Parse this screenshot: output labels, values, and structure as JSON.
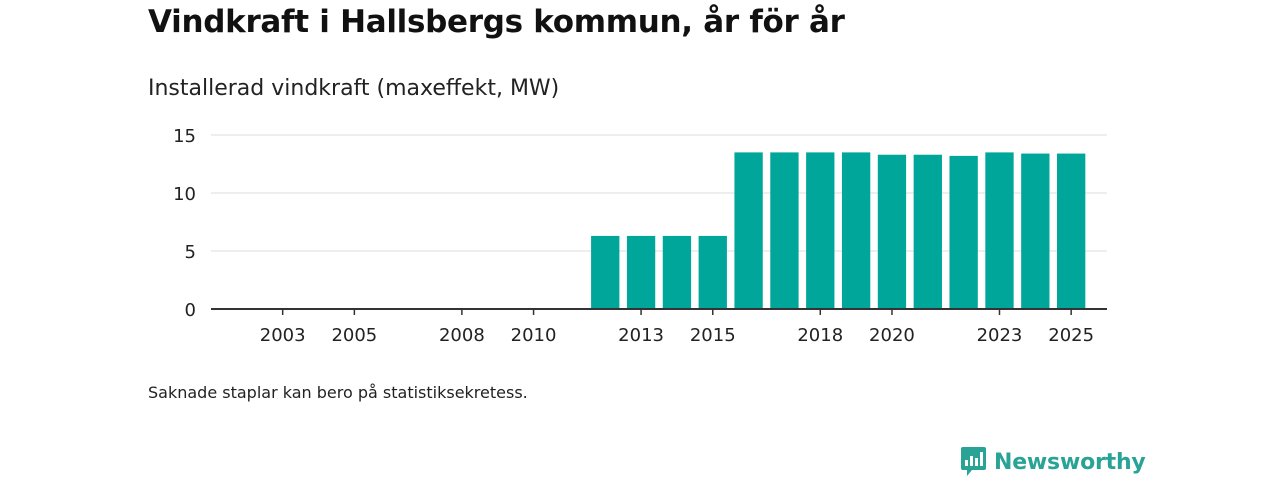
{
  "title": "Vindkraft i Hallsbergs kommun, år för år",
  "subtitle": "Installerad vindkraft (maxeffekt, MW)",
  "note": "Saknade staplar kan bero på statistiksekretess.",
  "brand": {
    "name": "Newsworthy",
    "icon": "newsworthy-logo-icon",
    "color": "#2aa397"
  },
  "colors": {
    "bar": "#00a699",
    "grid": "#dddddd",
    "axis": "#333333"
  },
  "chart_data": {
    "type": "bar",
    "title": "Installerad vindkraft (maxeffekt, MW)",
    "xlabel": "",
    "ylabel": "",
    "ylim": [
      0,
      15
    ],
    "yticks": [
      0,
      5,
      10,
      15
    ],
    "grid": true,
    "x_range": [
      2001,
      2026
    ],
    "xticks": [
      2003,
      2005,
      2008,
      2010,
      2013,
      2015,
      2018,
      2020,
      2023,
      2025
    ],
    "categories": [
      2012,
      2013,
      2014,
      2015,
      2016,
      2017,
      2018,
      2019,
      2020,
      2021,
      2022,
      2023,
      2024,
      2025
    ],
    "values": [
      6.3,
      6.3,
      6.3,
      6.3,
      13.5,
      13.5,
      13.5,
      13.5,
      13.3,
      13.3,
      13.2,
      13.5,
      13.4,
      13.4
    ]
  }
}
